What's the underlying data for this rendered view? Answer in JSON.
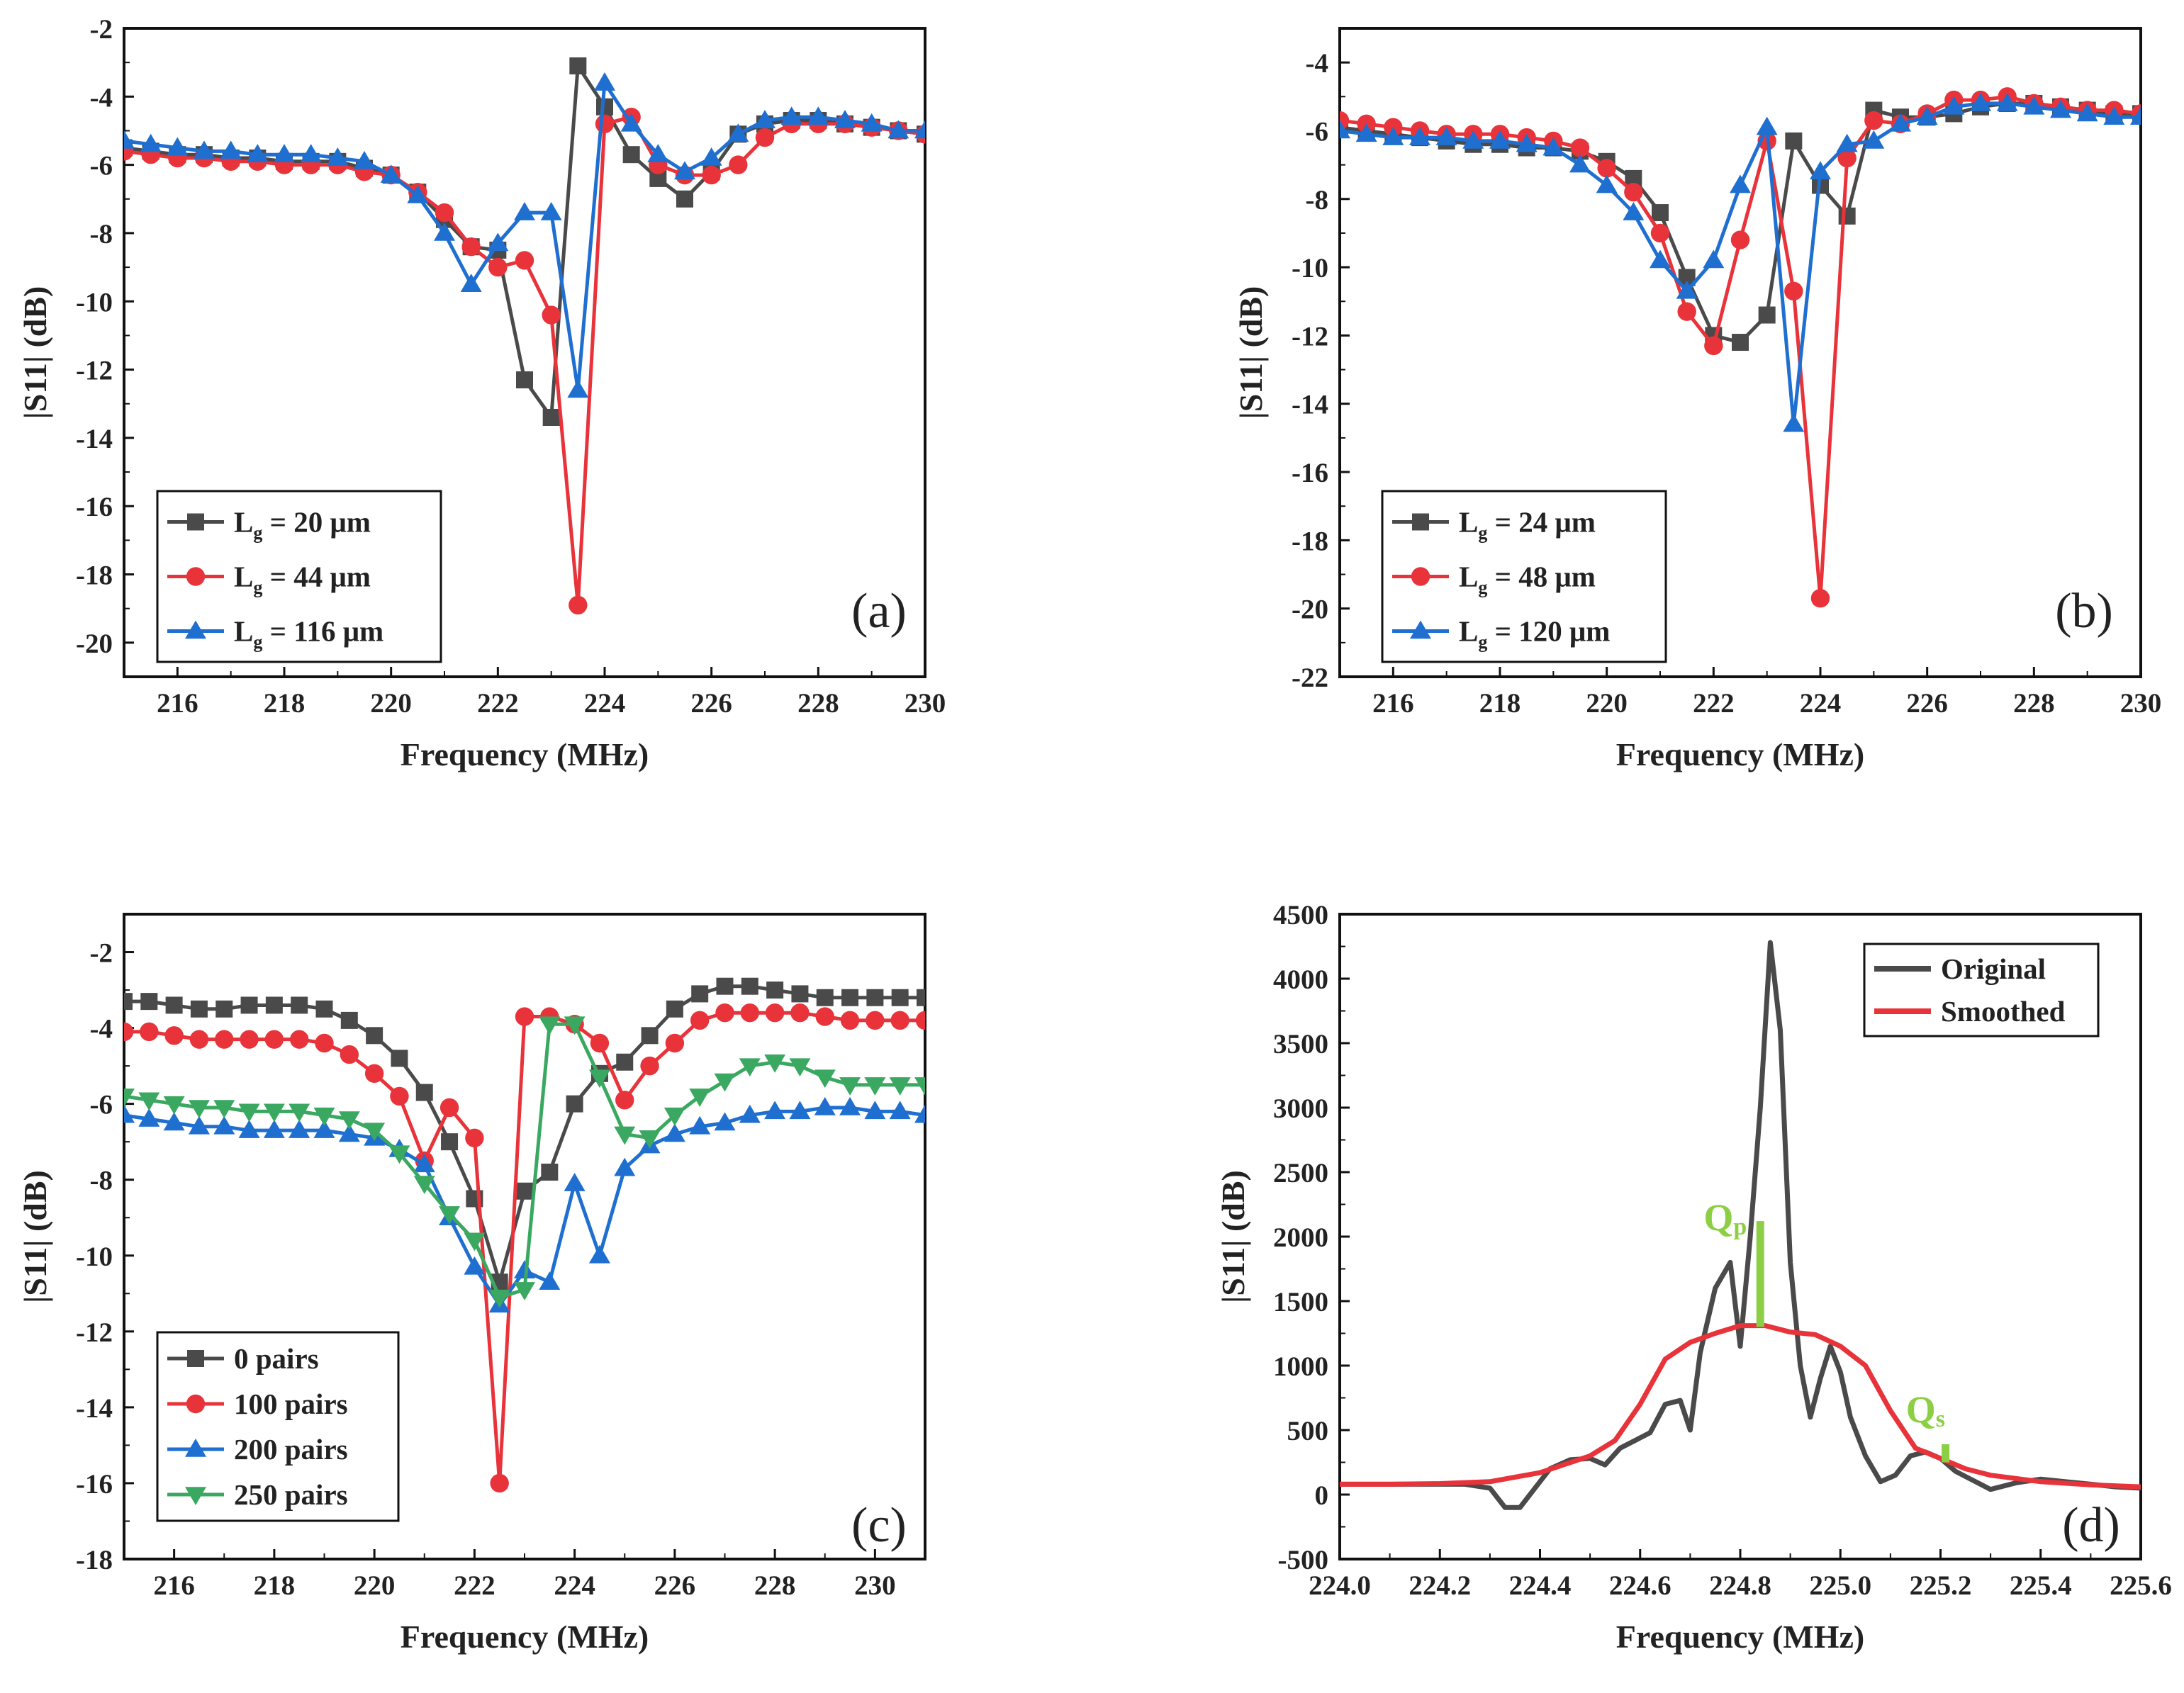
{
  "colors": {
    "black": "#4a4a4a",
    "red": "#e8333a",
    "blue": "#1f6fd1",
    "green": "#3aa861",
    "annot_green": "#8ccf45"
  },
  "chart_data": [
    {
      "id": "a",
      "type": "line",
      "panel_label": "(a)",
      "xlabel": "Frequency (MHz)",
      "ylabel": "|S11| (dB)",
      "xlim": [
        215,
        230
      ],
      "ylim": [
        -21,
        -2
      ],
      "xticks": [
        216,
        218,
        220,
        222,
        224,
        226,
        228,
        230
      ],
      "yticks": [
        -20,
        -18,
        -16,
        -14,
        -12,
        -10,
        -8,
        -6,
        -4,
        -2
      ],
      "legend_position": "bottom-left",
      "series": [
        {
          "name": "L",
          "sub": "g",
          "suffix": " = 20 μm",
          "color": "#4a4a4a",
          "marker": "square",
          "x": [
            215,
            215.5,
            216,
            216.5,
            217,
            217.5,
            218,
            218.5,
            219,
            219.5,
            220,
            220.5,
            221,
            221.5,
            222,
            222.5,
            223,
            223.5,
            224,
            224.5,
            225,
            225.5,
            226,
            226.5,
            227,
            227.5,
            228,
            228.5,
            229,
            229.5,
            230
          ],
          "y": [
            -5.5,
            -5.6,
            -5.7,
            -5.7,
            -5.8,
            -5.8,
            -5.9,
            -5.9,
            -5.9,
            -6.1,
            -6.3,
            -6.8,
            -7.6,
            -8.4,
            -8.5,
            -12.3,
            -13.4,
            -3.1,
            -4.3,
            -5.7,
            -6.4,
            -7.0,
            -6.2,
            -5.1,
            -4.8,
            -4.7,
            -4.7,
            -4.8,
            -4.9,
            -5.0,
            -5.1
          ]
        },
        {
          "name": "L",
          "sub": "g",
          "suffix": " = 44 μm",
          "color": "#e8333a",
          "marker": "circle",
          "x": [
            215,
            215.5,
            216,
            216.5,
            217,
            217.5,
            218,
            218.5,
            219,
            219.5,
            220,
            220.5,
            221,
            221.5,
            222,
            222.5,
            223,
            223.5,
            224,
            224.5,
            225,
            225.5,
            226,
            226.5,
            227,
            227.5,
            228,
            228.5,
            229,
            229.5,
            230
          ],
          "y": [
            -5.6,
            -5.7,
            -5.8,
            -5.8,
            -5.9,
            -5.9,
            -6.0,
            -6.0,
            -6.0,
            -6.2,
            -6.3,
            -6.8,
            -7.4,
            -8.4,
            -9.0,
            -8.8,
            -10.4,
            -18.9,
            -4.8,
            -4.6,
            -6.0,
            -6.3,
            -6.3,
            -6.0,
            -5.2,
            -4.8,
            -4.8,
            -4.8,
            -4.9,
            -5.0,
            -5.1
          ]
        },
        {
          "name": "L",
          "sub": "g",
          "suffix": " = 116 μm",
          "color": "#1f6fd1",
          "marker": "triangle-up",
          "x": [
            215,
            215.5,
            216,
            216.5,
            217,
            217.5,
            218,
            218.5,
            219,
            219.5,
            220,
            220.5,
            221,
            221.5,
            222,
            222.5,
            223,
            223.5,
            224,
            224.5,
            225,
            225.5,
            226,
            226.5,
            227,
            227.5,
            228,
            228.5,
            229,
            229.5,
            230
          ],
          "y": [
            -5.3,
            -5.4,
            -5.5,
            -5.6,
            -5.6,
            -5.7,
            -5.7,
            -5.7,
            -5.8,
            -5.9,
            -6.3,
            -6.9,
            -8.0,
            -9.5,
            -8.3,
            -7.4,
            -7.4,
            -12.6,
            -3.6,
            -4.8,
            -5.7,
            -6.2,
            -5.8,
            -5.1,
            -4.7,
            -4.6,
            -4.6,
            -4.7,
            -4.8,
            -5.0,
            -5.0
          ]
        }
      ]
    },
    {
      "id": "b",
      "type": "line",
      "panel_label": "(b)",
      "xlabel": "Frequency (MHz)",
      "ylabel": "|S11| (dB)",
      "xlim": [
        215,
        230
      ],
      "ylim": [
        -22,
        -3
      ],
      "xticks": [
        216,
        218,
        220,
        222,
        224,
        226,
        228,
        230
      ],
      "yticks": [
        -22,
        -20,
        -18,
        -16,
        -14,
        -12,
        -10,
        -8,
        -6,
        -4
      ],
      "legend_position": "bottom-left",
      "series": [
        {
          "name": "L",
          "sub": "g",
          "suffix": " = 24 μm",
          "color": "#4a4a4a",
          "marker": "square",
          "x": [
            215,
            215.5,
            216,
            216.5,
            217,
            217.5,
            218,
            218.5,
            219,
            219.5,
            220,
            220.5,
            221,
            221.5,
            222,
            222.5,
            223,
            223.5,
            224,
            224.5,
            225,
            225.5,
            226,
            226.5,
            227,
            227.5,
            228,
            228.5,
            229,
            229.5,
            230
          ],
          "y": [
            -5.9,
            -6.0,
            -6.1,
            -6.2,
            -6.3,
            -6.4,
            -6.4,
            -6.5,
            -6.5,
            -6.6,
            -6.9,
            -7.4,
            -8.4,
            -10.3,
            -12.0,
            -12.2,
            -11.4,
            -6.3,
            -7.6,
            -8.5,
            -5.4,
            -5.6,
            -5.6,
            -5.5,
            -5.3,
            -5.2,
            -5.2,
            -5.3,
            -5.4,
            -5.5,
            -5.5
          ]
        },
        {
          "name": "L",
          "sub": "g",
          "suffix": " = 48 μm",
          "color": "#e8333a",
          "marker": "circle",
          "x": [
            215,
            215.5,
            216,
            216.5,
            217,
            217.5,
            218,
            218.5,
            219,
            219.5,
            220,
            220.5,
            221,
            221.5,
            222,
            222.5,
            223,
            223.5,
            224,
            224.5,
            225,
            225.5,
            226,
            226.5,
            227,
            227.5,
            228,
            228.5,
            229,
            229.5,
            230
          ],
          "y": [
            -5.7,
            -5.8,
            -5.9,
            -6.0,
            -6.1,
            -6.1,
            -6.1,
            -6.2,
            -6.3,
            -6.5,
            -7.1,
            -7.8,
            -9.0,
            -11.3,
            -12.3,
            -9.2,
            -6.3,
            -10.7,
            -19.7,
            -6.8,
            -5.7,
            -5.8,
            -5.5,
            -5.1,
            -5.1,
            -5.0,
            -5.2,
            -5.3,
            -5.4,
            -5.4,
            -5.5
          ]
        },
        {
          "name": "L",
          "sub": "g",
          "suffix": " = 120 μm",
          "color": "#1f6fd1",
          "marker": "triangle-up",
          "x": [
            215,
            215.5,
            216,
            216.5,
            217,
            217.5,
            218,
            218.5,
            219,
            219.5,
            220,
            220.5,
            221,
            221.5,
            222,
            222.5,
            223,
            223.5,
            224,
            224.5,
            225,
            225.5,
            226,
            226.5,
            227,
            227.5,
            228,
            228.5,
            229,
            229.5,
            230
          ],
          "y": [
            -6.0,
            -6.1,
            -6.2,
            -6.2,
            -6.2,
            -6.3,
            -6.3,
            -6.4,
            -6.5,
            -7.0,
            -7.6,
            -8.4,
            -9.8,
            -10.7,
            -9.8,
            -7.6,
            -5.9,
            -14.6,
            -7.2,
            -6.4,
            -6.3,
            -5.8,
            -5.6,
            -5.3,
            -5.2,
            -5.2,
            -5.3,
            -5.4,
            -5.5,
            -5.6,
            -5.6
          ]
        }
      ]
    },
    {
      "id": "c",
      "type": "line",
      "panel_label": "(c)",
      "xlabel": "Frequency (MHz)",
      "ylabel": "|S11| (dB)",
      "xlim": [
        215,
        231
      ],
      "ylim": [
        -18,
        -1
      ],
      "xticks": [
        216,
        218,
        220,
        222,
        224,
        226,
        228,
        230
      ],
      "yticks": [
        -18,
        -16,
        -14,
        -12,
        -10,
        -8,
        -6,
        -4,
        -2
      ],
      "legend_position": "bottom-left",
      "series": [
        {
          "name": "0 pairs",
          "sub": "",
          "suffix": "",
          "color": "#4a4a4a",
          "marker": "square",
          "x": [
            215,
            215.5,
            216,
            216.5,
            217,
            217.5,
            218,
            218.5,
            219,
            219.5,
            220,
            220.5,
            221,
            221.5,
            222,
            222.5,
            223,
            223.5,
            224,
            224.5,
            225,
            225.5,
            226,
            226.5,
            227,
            227.5,
            228,
            228.5,
            229,
            229.5,
            230,
            230.5,
            231
          ],
          "y": [
            -3.3,
            -3.3,
            -3.4,
            -3.5,
            -3.5,
            -3.4,
            -3.4,
            -3.4,
            -3.5,
            -3.8,
            -4.2,
            -4.8,
            -5.7,
            -7.0,
            -8.5,
            -10.7,
            -8.3,
            -7.8,
            -6.0,
            -5.2,
            -4.9,
            -4.2,
            -3.5,
            -3.1,
            -2.9,
            -2.9,
            -3.0,
            -3.1,
            -3.2,
            -3.2,
            -3.2,
            -3.2,
            -3.2
          ]
        },
        {
          "name": "100 pairs",
          "sub": "",
          "suffix": "",
          "color": "#e8333a",
          "marker": "circle",
          "x": [
            215,
            215.5,
            216,
            216.5,
            217,
            217.5,
            218,
            218.5,
            219,
            219.5,
            220,
            220.5,
            221,
            221.5,
            222,
            222.5,
            223,
            223.5,
            224,
            224.5,
            225,
            225.5,
            226,
            226.5,
            227,
            227.5,
            228,
            228.5,
            229,
            229.5,
            230,
            230.5,
            231
          ],
          "y": [
            -4.1,
            -4.1,
            -4.2,
            -4.3,
            -4.3,
            -4.3,
            -4.3,
            -4.3,
            -4.4,
            -4.7,
            -5.2,
            -5.8,
            -7.5,
            -6.1,
            -6.9,
            -16.0,
            -3.7,
            -3.7,
            -3.9,
            -4.4,
            -5.9,
            -5.0,
            -4.4,
            -3.8,
            -3.6,
            -3.6,
            -3.6,
            -3.6,
            -3.7,
            -3.8,
            -3.8,
            -3.8,
            -3.8
          ]
        },
        {
          "name": "200 pairs",
          "sub": "",
          "suffix": "",
          "color": "#1f6fd1",
          "marker": "triangle-up",
          "x": [
            215,
            215.5,
            216,
            216.5,
            217,
            217.5,
            218,
            218.5,
            219,
            219.5,
            220,
            220.5,
            221,
            221.5,
            222,
            222.5,
            223,
            223.5,
            224,
            224.5,
            225,
            225.5,
            226,
            226.5,
            227,
            227.5,
            228,
            228.5,
            229,
            229.5,
            230,
            230.5,
            231
          ],
          "y": [
            -6.3,
            -6.4,
            -6.5,
            -6.6,
            -6.6,
            -6.7,
            -6.7,
            -6.7,
            -6.7,
            -6.8,
            -6.9,
            -7.2,
            -7.6,
            -9.0,
            -10.3,
            -11.3,
            -10.4,
            -10.7,
            -8.1,
            -10.0,
            -7.7,
            -7.1,
            -6.8,
            -6.6,
            -6.5,
            -6.3,
            -6.2,
            -6.2,
            -6.1,
            -6.1,
            -6.2,
            -6.2,
            -6.3
          ]
        },
        {
          "name": "250 pairs",
          "sub": "",
          "suffix": "",
          "color": "#3aa861",
          "marker": "triangle-down",
          "x": [
            215,
            215.5,
            216,
            216.5,
            217,
            217.5,
            218,
            218.5,
            219,
            219.5,
            220,
            220.5,
            221,
            221.5,
            222,
            222.5,
            223,
            223.5,
            224,
            224.5,
            225,
            225.5,
            226,
            226.5,
            227,
            227.5,
            228,
            228.5,
            229,
            229.5,
            230,
            230.5,
            231
          ],
          "y": [
            -5.8,
            -5.9,
            -6.0,
            -6.1,
            -6.1,
            -6.2,
            -6.2,
            -6.2,
            -6.3,
            -6.4,
            -6.7,
            -7.3,
            -8.1,
            -8.9,
            -9.6,
            -11.1,
            -10.9,
            -3.9,
            -3.9,
            -5.3,
            -6.8,
            -6.9,
            -6.3,
            -5.8,
            -5.4,
            -5.0,
            -4.9,
            -5.0,
            -5.3,
            -5.5,
            -5.5,
            -5.5,
            -5.5
          ]
        }
      ]
    },
    {
      "id": "d",
      "type": "line",
      "panel_label": "(d)",
      "xlabel": "Frequency (MHz)",
      "ylabel": "|S11| (dB)",
      "xlim": [
        224.0,
        225.6
      ],
      "ylim": [
        -500,
        4500
      ],
      "xticks": [
        "224.0",
        "224.2",
        "224.4",
        "224.6",
        "224.8",
        "225.0",
        "225.2",
        "225.4",
        "225.6"
      ],
      "yticks": [
        "-500",
        "0",
        "500",
        "1000",
        "1500",
        "2000",
        "2500",
        "3000",
        "3500",
        "4000",
        "4500"
      ],
      "legend_position": "top-right",
      "annotations": [
        {
          "text": "Q",
          "sub": "p",
          "at_x": 224.77,
          "at_y": 2050
        },
        {
          "text": "Q",
          "sub": "s",
          "at_x": 225.17,
          "at_y": 560
        }
      ],
      "bars": [
        {
          "x": 224.84,
          "y0": 1300,
          "y1": 2120
        },
        {
          "x": 225.21,
          "y0": 250,
          "y1": 390
        }
      ],
      "series": [
        {
          "name": "Original",
          "sub": "",
          "suffix": "",
          "color": "#4a4a4a",
          "marker": "none",
          "x": [
            224.0,
            224.1,
            224.2,
            224.25,
            224.3,
            224.33,
            224.36,
            224.39,
            224.42,
            224.46,
            224.5,
            224.53,
            224.56,
            224.59,
            224.62,
            224.65,
            224.68,
            224.7,
            224.72,
            224.75,
            224.78,
            224.8,
            224.82,
            224.84,
            224.86,
            224.88,
            224.9,
            224.92,
            224.94,
            224.96,
            224.98,
            225.0,
            225.02,
            225.05,
            225.08,
            225.11,
            225.14,
            225.17,
            225.2,
            225.23,
            225.26,
            225.3,
            225.35,
            225.4,
            225.45,
            225.5,
            225.55,
            225.6
          ],
          "y": [
            80,
            80,
            80,
            80,
            50,
            -100,
            -100,
            50,
            200,
            270,
            280,
            230,
            360,
            420,
            480,
            700,
            730,
            500,
            1100,
            1600,
            1800,
            1150,
            2000,
            3000,
            4280,
            3600,
            1800,
            1000,
            600,
            900,
            1150,
            950,
            600,
            300,
            100,
            150,
            300,
            330,
            280,
            180,
            120,
            40,
            90,
            120,
            100,
            80,
            60,
            50
          ]
        },
        {
          "name": "Smoothed",
          "sub": "",
          "suffix": "",
          "color": "#e8333a",
          "marker": "none",
          "x": [
            224.0,
            224.1,
            224.2,
            224.3,
            224.4,
            224.5,
            224.55,
            224.6,
            224.65,
            224.7,
            224.75,
            224.8,
            224.85,
            224.9,
            224.95,
            225.0,
            225.05,
            225.1,
            225.15,
            225.2,
            225.25,
            225.3,
            225.4,
            225.5,
            225.6
          ],
          "y": [
            80,
            80,
            85,
            100,
            170,
            300,
            420,
            700,
            1050,
            1180,
            1250,
            1310,
            1310,
            1260,
            1240,
            1150,
            1000,
            650,
            360,
            280,
            200,
            150,
            100,
            75,
            60
          ]
        }
      ]
    }
  ]
}
